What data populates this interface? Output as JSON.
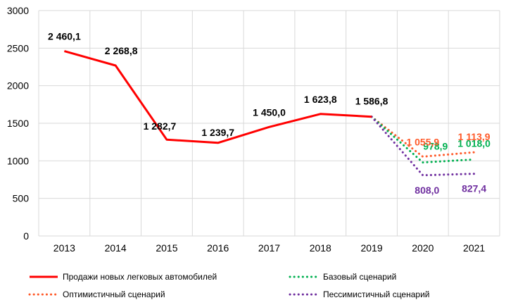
{
  "chart_data": {
    "type": "line",
    "categories": [
      "2013",
      "2014",
      "2015",
      "2016",
      "2017",
      "2018",
      "2019",
      "2020",
      "2021"
    ],
    "ylim": [
      0,
      3000
    ],
    "yticks": [
      0,
      500,
      1000,
      1500,
      2000,
      2500,
      3000
    ],
    "grid": true,
    "legend_placement": "bottom",
    "series": [
      {
        "name": "Продажи новых легковых автомобилей",
        "color": "#ff0000",
        "style": "solid",
        "x": [
          "2013",
          "2014",
          "2015",
          "2016",
          "2017",
          "2018",
          "2019"
        ],
        "values": [
          2460.1,
          2268.8,
          1282.7,
          1239.7,
          1450.0,
          1623.8,
          1586.8
        ],
        "labels": [
          "2 460,1",
          "2 268,8",
          "1 282,7",
          "1 239,7",
          "1 450,0",
          "1 623,8",
          "1 586,8"
        ],
        "label_color": "#000000"
      },
      {
        "name": "Базовый сценарий",
        "color": "#00b050",
        "style": "dotted",
        "x": [
          "2019",
          "2020",
          "2021"
        ],
        "values": [
          1586.8,
          978.9,
          1018.0
        ],
        "labels": [
          "",
          "978,9",
          "1 018,0"
        ],
        "label_color": "#00b050"
      },
      {
        "name": "Оптимистичный сценарий",
        "color": "#ff5b2b",
        "style": "dotted",
        "x": [
          "2019",
          "2020",
          "2021"
        ],
        "values": [
          1586.8,
          1055.9,
          1113.9
        ],
        "labels": [
          "",
          "1 055,9",
          "1 113,9"
        ],
        "label_color": "#ff5b2b"
      },
      {
        "name": "Пессимистичный сценарий",
        "color": "#7030a0",
        "style": "dotted",
        "x": [
          "2019",
          "2020",
          "2021"
        ],
        "values": [
          1586.8,
          808.0,
          827.4
        ],
        "labels": [
          "",
          "808,0",
          "827,4"
        ],
        "label_color": "#7030a0"
      }
    ]
  }
}
